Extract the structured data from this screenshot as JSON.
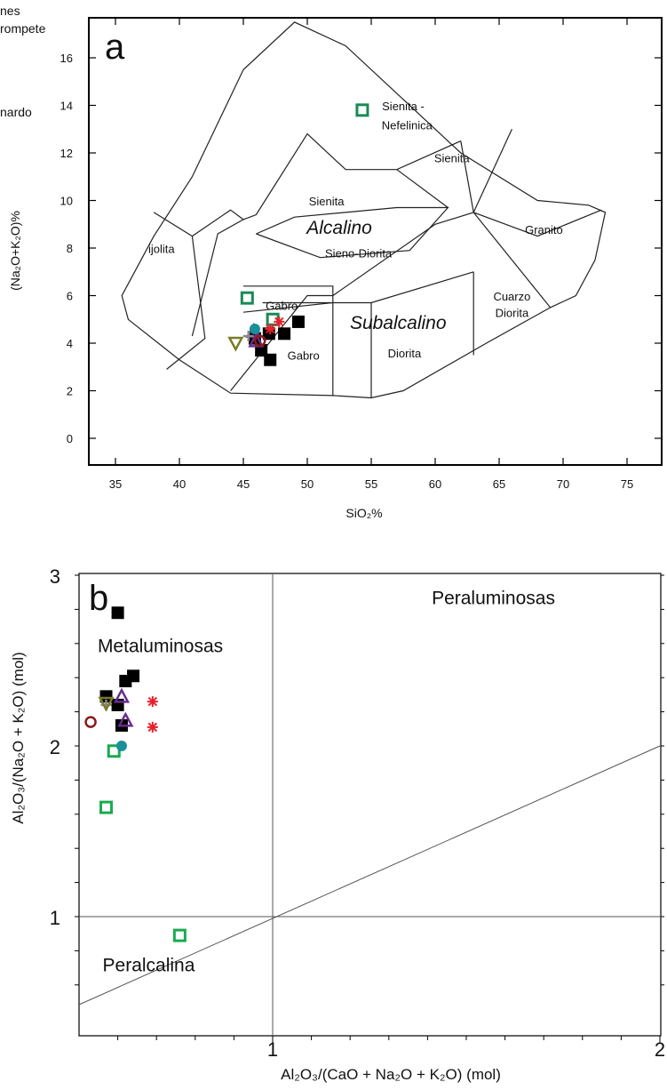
{
  "cut_legend": {
    "line1": "nes",
    "line2": "rompete",
    "line3": "nardo"
  },
  "chart_data": [
    {
      "type": "scatter",
      "panel_letter": "a",
      "xlabel": "SiO₂%",
      "ylabel": "(Na₂O+K₂O)%",
      "xlim": [
        33,
        77
      ],
      "ylim": [
        -1,
        18
      ],
      "xticks": [
        35,
        40,
        45,
        50,
        55,
        60,
        65,
        70,
        75
      ],
      "yticks": [
        0,
        2,
        4,
        6,
        8,
        10,
        12,
        14,
        16
      ],
      "grid": false,
      "field_labels": [
        {
          "text": "Sienita -",
          "x": 57.5,
          "y": 13.8
        },
        {
          "text": "Nefelinica",
          "x": 57.8,
          "y": 13.0
        },
        {
          "text": "Sienita",
          "x": 61.3,
          "y": 11.6
        },
        {
          "text": "Sienita",
          "x": 51.5,
          "y": 9.8
        },
        {
          "text": "ijolita",
          "x": 38.6,
          "y": 7.8
        },
        {
          "text": "Granito",
          "x": 68.5,
          "y": 8.6
        },
        {
          "text": "Sieno-Diorita",
          "x": 54.0,
          "y": 7.6
        },
        {
          "text": "Gabro",
          "x": 48.0,
          "y": 5.4
        },
        {
          "text": "Cuarzo",
          "x": 66.0,
          "y": 5.8
        },
        {
          "text": "Diorita",
          "x": 66.0,
          "y": 5.1
        },
        {
          "text": "Diorita",
          "x": 57.6,
          "y": 3.4
        },
        {
          "text": "Gabro",
          "x": 49.7,
          "y": 3.3
        }
      ],
      "series_labels": [
        {
          "text": "Alcalino",
          "x": 52.5,
          "y": 8.6
        },
        {
          "text": "Subalcalino",
          "x": 57.1,
          "y": 4.6
        }
      ],
      "series": [
        {
          "marker": "filled-square",
          "color": "#000000",
          "points": [
            [
              47.1,
              3.3
            ],
            [
              46.4,
              3.7
            ],
            [
              48.2,
              4.4
            ],
            [
              49.3,
              4.9
            ],
            [
              47.0,
              4.4
            ],
            [
              45.9,
              4.2
            ]
          ]
        },
        {
          "marker": "open-square",
          "color": "#1a8a55",
          "points": [
            [
              54.3,
              13.8
            ],
            [
              45.3,
              5.9
            ],
            [
              47.3,
              5.0
            ]
          ]
        },
        {
          "marker": "open-triangle-down",
          "color": "#7a7a2a",
          "points": [
            [
              44.4,
              4.0
            ]
          ]
        },
        {
          "marker": "open-triangle",
          "color": "#6a2b8c",
          "points": [
            [
              45.8,
              4.5
            ],
            [
              46.0,
              4.1
            ]
          ]
        },
        {
          "marker": "open-circle",
          "color": "#8b1a1a",
          "points": [
            [
              46.3,
              4.1
            ]
          ]
        },
        {
          "marker": "filled-circle",
          "color": "#1a8f9a",
          "points": [
            [
              45.9,
              4.6
            ]
          ]
        },
        {
          "marker": "star",
          "color": "#e8202a",
          "points": [
            [
              47.8,
              4.9
            ],
            [
              47.1,
              4.6
            ]
          ]
        },
        {
          "marker": "plus",
          "color": "#888888",
          "points": [
            [
              45.4,
              4.3
            ]
          ]
        }
      ]
    },
    {
      "type": "scatter",
      "panel_letter": "b",
      "xlabel": "Al₂O₃/(CaO + Na₂O + K₂O) (mol)",
      "ylabel": "Al₂O₃/(Na₂O + K₂O) (mol)",
      "xlim": [
        0.5,
        2.0
      ],
      "ylim": [
        0.5,
        3.0
      ],
      "xticks": [
        1,
        2
      ],
      "yticks": [
        1,
        2,
        3
      ],
      "grid": false,
      "region_labels": [
        {
          "text": "Peraluminosas",
          "x": 1.57,
          "y": 2.83
        },
        {
          "text": "Metaluminosas",
          "x": 0.71,
          "y": 2.55
        },
        {
          "text": "Peralcalina",
          "x": 0.68,
          "y": 0.68
        }
      ],
      "series": [
        {
          "marker": "filled-square",
          "color": "#000000",
          "points": [
            [
              0.6,
              2.78
            ],
            [
              0.57,
              2.29
            ],
            [
              0.6,
              2.24
            ],
            [
              0.62,
              2.38
            ],
            [
              0.64,
              2.41
            ],
            [
              0.61,
              2.12
            ]
          ]
        },
        {
          "marker": "open-square",
          "color": "#1aaa50",
          "points": [
            [
              0.59,
              1.97
            ],
            [
              0.57,
              1.64
            ],
            [
              0.76,
              0.89
            ]
          ]
        },
        {
          "marker": "open-circle",
          "color": "#8b1a1a",
          "points": [
            [
              0.53,
              2.14
            ]
          ]
        },
        {
          "marker": "open-triangle",
          "color": "#6a2b8c",
          "points": [
            [
              0.61,
              2.29
            ],
            [
              0.62,
              2.15
            ]
          ]
        },
        {
          "marker": "filled-circle",
          "color": "#1a8f9a",
          "points": [
            [
              0.61,
              2.0
            ]
          ]
        },
        {
          "marker": "star",
          "color": "#e8202a",
          "points": [
            [
              0.69,
              2.26
            ],
            [
              0.69,
              2.11
            ]
          ]
        },
        {
          "marker": "plus",
          "color": "#888888",
          "points": [
            [
              0.57,
              2.24
            ]
          ]
        },
        {
          "marker": "open-triangle-down",
          "color": "#7a7a2a",
          "points": [
            [
              0.57,
              2.25
            ]
          ]
        }
      ]
    }
  ]
}
